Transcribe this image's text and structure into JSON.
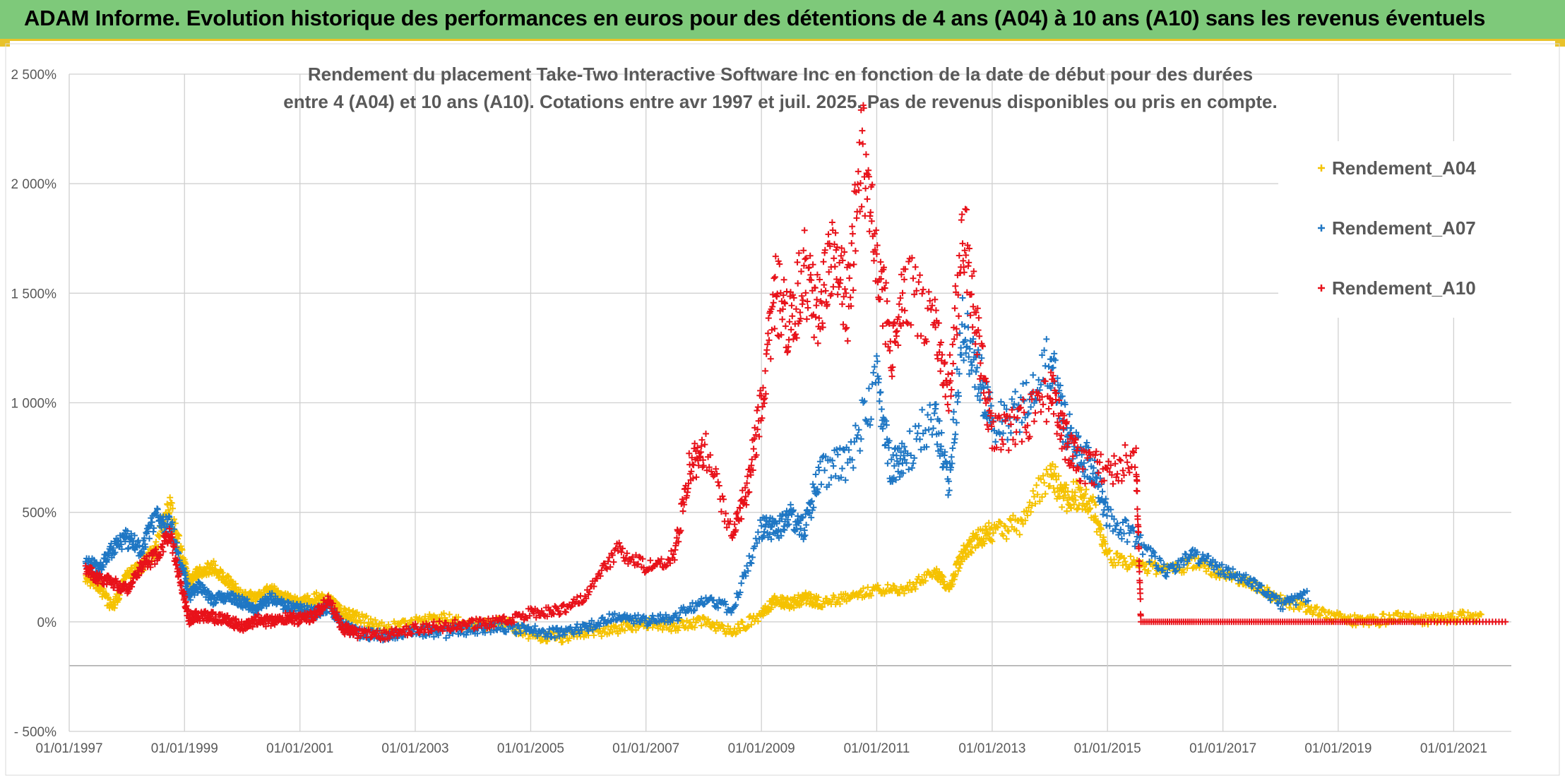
{
  "header": {
    "title": "ADAM Informe. Evolution historique des performances en euros pour des détentions de 4 ans (A04) à 10 ans (A10) sans les revenus éventuels"
  },
  "colors": {
    "header_bg": "#7ec97a",
    "accent_line": "#e8c22a",
    "series_A04": "#f5c200",
    "series_A07": "#1f77c4",
    "series_A10": "#e8121a"
  },
  "chart_data": {
    "type": "scatter",
    "title_line1": "Rendement du placement Take-Two Interactive Software Inc en fonction de la date de début pour des durées",
    "title_line2": "entre 4 (A04) et 10 ans (A10). Cotations entre avr 1997 et juil. 2025. Pas de revenus disponibles ou pris en compte.",
    "xlabel": "",
    "ylabel": "",
    "marker": "+",
    "grid": true,
    "legend_position": "top-right",
    "x_range": [
      "1997-01-01",
      "2022-01-01"
    ],
    "ylim": [
      -500,
      2500
    ],
    "y_ticks": [
      {
        "value": -500,
        "label": "- 500%"
      },
      {
        "value": 0,
        "label": "0%"
      },
      {
        "value": 500,
        "label": "500%"
      },
      {
        "value": 1000,
        "label": "1 000%"
      },
      {
        "value": 1500,
        "label": "1 500%"
      },
      {
        "value": 2000,
        "label": "2 000%"
      },
      {
        "value": 2500,
        "label": "2 500%"
      }
    ],
    "x_ticks": [
      {
        "value": "1997-01-01",
        "label": "01/01/1997"
      },
      {
        "value": "1999-01-01",
        "label": "01/01/1999"
      },
      {
        "value": "2001-01-01",
        "label": "01/01/2001"
      },
      {
        "value": "2003-01-01",
        "label": "01/01/2003"
      },
      {
        "value": "2005-01-01",
        "label": "01/01/2005"
      },
      {
        "value": "2007-01-01",
        "label": "01/01/2007"
      },
      {
        "value": "2009-01-01",
        "label": "01/01/2009"
      },
      {
        "value": "2011-01-01",
        "label": "01/01/2011"
      },
      {
        "value": "2013-01-01",
        "label": "01/01/2013"
      },
      {
        "value": "2015-01-01",
        "label": "01/01/2015"
      },
      {
        "value": "2017-01-01",
        "label": "01/01/2017"
      },
      {
        "value": "2019-01-01",
        "label": "01/01/2019"
      },
      {
        "value": "2021-01-01",
        "label": "01/01/2021"
      }
    ],
    "series": [
      {
        "name": "Rendement_A04",
        "color": "#f5c200",
        "points": [
          [
            "1997-04-15",
            200
          ],
          [
            "1997-07-01",
            170
          ],
          [
            "1997-10-01",
            60
          ],
          [
            "1998-01-01",
            210
          ],
          [
            "1998-04-01",
            250
          ],
          [
            "1998-07-01",
            330
          ],
          [
            "1998-10-01",
            520
          ],
          [
            "1998-12-15",
            300
          ],
          [
            "1999-02-01",
            180
          ],
          [
            "1999-04-01",
            230
          ],
          [
            "1999-07-01",
            250
          ],
          [
            "1999-10-01",
            190
          ],
          [
            "2000-01-01",
            120
          ],
          [
            "2000-04-01",
            110
          ],
          [
            "2000-07-01",
            150
          ],
          [
            "2000-10-01",
            110
          ],
          [
            "2001-01-01",
            80
          ],
          [
            "2001-04-01",
            110
          ],
          [
            "2001-07-01",
            100
          ],
          [
            "2001-10-01",
            40
          ],
          [
            "2002-01-01",
            20
          ],
          [
            "2002-07-01",
            -30
          ],
          [
            "2003-01-01",
            0
          ],
          [
            "2003-07-01",
            20
          ],
          [
            "2004-01-01",
            -20
          ],
          [
            "2004-07-01",
            0
          ],
          [
            "2005-01-01",
            -60
          ],
          [
            "2005-07-01",
            -70
          ],
          [
            "2006-01-01",
            -50
          ],
          [
            "2006-07-01",
            -30
          ],
          [
            "2007-01-01",
            -10
          ],
          [
            "2007-07-01",
            -20
          ],
          [
            "2008-01-01",
            0
          ],
          [
            "2008-07-01",
            -40
          ],
          [
            "2009-01-01",
            30
          ],
          [
            "2009-04-01",
            100
          ],
          [
            "2009-07-01",
            80
          ],
          [
            "2009-10-01",
            110
          ],
          [
            "2010-01-01",
            90
          ],
          [
            "2010-07-01",
            110
          ],
          [
            "2011-01-01",
            150
          ],
          [
            "2011-07-01",
            140
          ],
          [
            "2012-01-01",
            240
          ],
          [
            "2012-04-01",
            150
          ],
          [
            "2012-07-01",
            320
          ],
          [
            "2012-10-01",
            380
          ],
          [
            "2013-01-01",
            410
          ],
          [
            "2013-07-01",
            450
          ],
          [
            "2014-01-01",
            680
          ],
          [
            "2014-04-01",
            560
          ],
          [
            "2014-07-01",
            580
          ],
          [
            "2014-10-01",
            520
          ],
          [
            "2015-01-01",
            300
          ],
          [
            "2015-07-01",
            260
          ],
          [
            "2016-01-01",
            230
          ],
          [
            "2016-07-01",
            270
          ],
          [
            "2017-01-01",
            220
          ],
          [
            "2017-07-01",
            170
          ],
          [
            "2018-01-01",
            100
          ],
          [
            "2018-07-01",
            60
          ],
          [
            "2019-01-01",
            20
          ],
          [
            "2019-07-01",
            0
          ],
          [
            "2020-01-01",
            20
          ],
          [
            "2020-07-01",
            10
          ],
          [
            "2021-01-01",
            20
          ],
          [
            "2021-07-01",
            30
          ]
        ]
      },
      {
        "name": "Rendement_A07",
        "color": "#1f77c4",
        "points": [
          [
            "1997-04-15",
            280
          ],
          [
            "1997-07-01",
            240
          ],
          [
            "1997-10-01",
            330
          ],
          [
            "1998-01-01",
            380
          ],
          [
            "1998-04-01",
            330
          ],
          [
            "1998-07-01",
            470
          ],
          [
            "1998-10-01",
            450
          ],
          [
            "1998-12-15",
            250
          ],
          [
            "1999-02-01",
            120
          ],
          [
            "1999-04-01",
            160
          ],
          [
            "1999-07-01",
            100
          ],
          [
            "1999-10-01",
            120
          ],
          [
            "2000-01-01",
            90
          ],
          [
            "2000-04-01",
            60
          ],
          [
            "2000-07-01",
            110
          ],
          [
            "2000-10-01",
            70
          ],
          [
            "2001-01-01",
            60
          ],
          [
            "2001-04-01",
            40
          ],
          [
            "2001-07-01",
            70
          ],
          [
            "2001-10-01",
            -20
          ],
          [
            "2002-01-01",
            -50
          ],
          [
            "2002-07-01",
            -60
          ],
          [
            "2003-01-01",
            -40
          ],
          [
            "2003-07-01",
            -50
          ],
          [
            "2004-01-01",
            -30
          ],
          [
            "2004-07-01",
            -20
          ],
          [
            "2005-01-01",
            -40
          ],
          [
            "2005-07-01",
            -50
          ],
          [
            "2006-01-01",
            -20
          ],
          [
            "2006-07-01",
            30
          ],
          [
            "2007-01-01",
            0
          ],
          [
            "2007-07-01",
            20
          ],
          [
            "2008-01-01",
            100
          ],
          [
            "2008-07-01",
            60
          ],
          [
            "2009-01-01",
            430
          ],
          [
            "2009-04-01",
            420
          ],
          [
            "2009-07-01",
            480
          ],
          [
            "2009-10-01",
            420
          ],
          [
            "2010-01-01",
            680
          ],
          [
            "2010-07-01",
            720
          ],
          [
            "2011-01-01",
            1100
          ],
          [
            "2011-04-01",
            700
          ],
          [
            "2011-07-01",
            750
          ],
          [
            "2012-01-01",
            950
          ],
          [
            "2012-04-01",
            620
          ],
          [
            "2012-07-01",
            1350
          ],
          [
            "2012-10-01",
            1150
          ],
          [
            "2013-01-01",
            900
          ],
          [
            "2013-07-01",
            980
          ],
          [
            "2014-01-01",
            1180
          ],
          [
            "2014-04-01",
            900
          ],
          [
            "2014-07-01",
            780
          ],
          [
            "2014-10-01",
            700
          ],
          [
            "2015-01-01",
            480
          ],
          [
            "2015-07-01",
            380
          ],
          [
            "2016-01-01",
            230
          ],
          [
            "2016-07-01",
            300
          ],
          [
            "2017-01-01",
            240
          ],
          [
            "2017-07-01",
            180
          ],
          [
            "2018-01-01",
            80
          ],
          [
            "2018-07-01",
            120
          ]
        ]
      },
      {
        "name": "Rendement_A10",
        "color": "#e8121a",
        "points": [
          [
            "1997-04-15",
            240
          ],
          [
            "1997-07-01",
            200
          ],
          [
            "1997-10-01",
            180
          ],
          [
            "1998-01-01",
            150
          ],
          [
            "1998-04-01",
            250
          ],
          [
            "1998-07-01",
            300
          ],
          [
            "1998-10-01",
            400
          ],
          [
            "1998-12-15",
            150
          ],
          [
            "1999-02-01",
            10
          ],
          [
            "1999-04-01",
            30
          ],
          [
            "1999-07-01",
            20
          ],
          [
            "1999-10-01",
            10
          ],
          [
            "2000-01-01",
            -20
          ],
          [
            "2000-04-01",
            10
          ],
          [
            "2000-07-01",
            0
          ],
          [
            "2000-10-01",
            20
          ],
          [
            "2001-01-01",
            10
          ],
          [
            "2001-04-01",
            30
          ],
          [
            "2001-07-01",
            100
          ],
          [
            "2001-10-01",
            -30
          ],
          [
            "2002-01-01",
            -50
          ],
          [
            "2002-07-01",
            -60
          ],
          [
            "2003-01-01",
            -30
          ],
          [
            "2003-07-01",
            -20
          ],
          [
            "2004-01-01",
            -10
          ],
          [
            "2004-07-01",
            0
          ],
          [
            "2005-01-01",
            40
          ],
          [
            "2005-07-01",
            50
          ],
          [
            "2006-01-01",
            130
          ],
          [
            "2006-07-01",
            330
          ],
          [
            "2007-01-01",
            250
          ],
          [
            "2007-07-01",
            300
          ],
          [
            "2007-10-01",
            700
          ],
          [
            "2008-01-01",
            800
          ],
          [
            "2008-07-01",
            400
          ],
          [
            "2008-10-01",
            600
          ],
          [
            "2009-01-01",
            1000
          ],
          [
            "2009-04-01",
            1500
          ],
          [
            "2009-07-01",
            1350
          ],
          [
            "2009-10-01",
            1600
          ],
          [
            "2010-01-01",
            1400
          ],
          [
            "2010-04-01",
            1700
          ],
          [
            "2010-07-01",
            1450
          ],
          [
            "2010-10-01",
            2150
          ],
          [
            "2011-01-01",
            1700
          ],
          [
            "2011-04-01",
            1250
          ],
          [
            "2011-07-01",
            1550
          ],
          [
            "2012-01-01",
            1350
          ],
          [
            "2012-04-01",
            1050
          ],
          [
            "2012-07-01",
            1800
          ],
          [
            "2012-10-01",
            1300
          ],
          [
            "2013-01-01",
            850
          ],
          [
            "2013-07-01",
            900
          ],
          [
            "2014-01-01",
            1050
          ],
          [
            "2014-04-01",
            850
          ],
          [
            "2014-07-01",
            720
          ],
          [
            "2015-01-01",
            700
          ],
          [
            "2015-07-01",
            740
          ],
          [
            "2015-08-01",
            0
          ],
          [
            "2016-07-01",
            0
          ],
          [
            "2017-07-01",
            0
          ],
          [
            "2018-07-01",
            0
          ],
          [
            "2019-07-01",
            0
          ],
          [
            "2020-07-01",
            0
          ],
          [
            "2021-12-15",
            0
          ]
        ]
      }
    ]
  }
}
